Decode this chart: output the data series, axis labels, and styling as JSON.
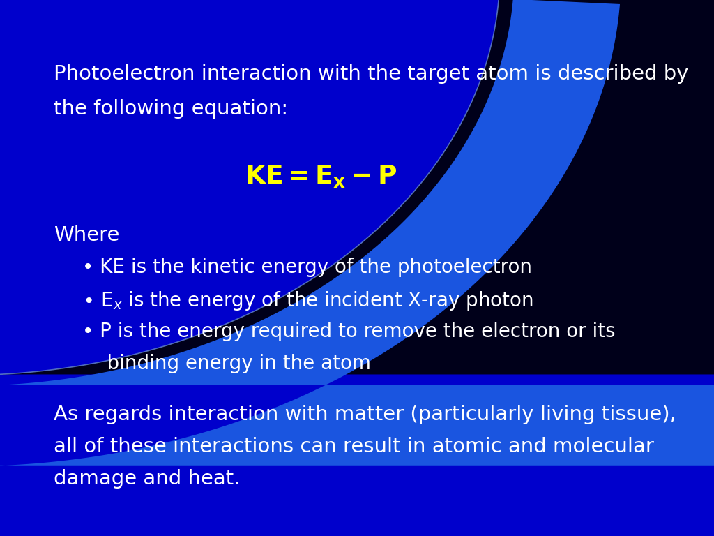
{
  "bg_left_color": "#0000CC",
  "bg_right_color": "#000010",
  "text_color": "#FFFFFF",
  "yellow_color": "#FFFF00",
  "swoosh_color": "#1a55e0",
  "arc_line_color": "#6688CC",
  "title_text_line1": "Photoelectron interaction with the target atom is described by",
  "title_text_line2": "the following equation:",
  "where_text": "Where",
  "bullet1": "• KE is the kinetic energy of the photoelectron",
  "bullet3_line1": "• P is the energy required to remove the electron or its",
  "bullet3_line2": "    binding energy in the atom",
  "closing_line1": "As regards interaction with matter (particularly living tissue),",
  "closing_line2": "all of these interactions can result in atomic and molecular",
  "closing_line3": "damage and heat.",
  "figsize": [
    10.24,
    7.68
  ],
  "dpi": 100,
  "fs_main": 21,
  "fs_eq": 27,
  "fs_bullet": 20
}
